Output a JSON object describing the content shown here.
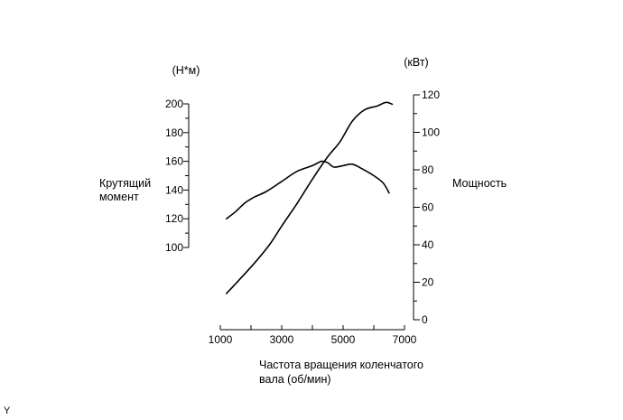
{
  "chart_data": {
    "type": "line",
    "xlabel": [
      "Частота вращения коленчатого",
      "вала (об/мин)"
    ],
    "xticks": [
      "1000",
      "3000",
      "5000",
      "7000"
    ],
    "xlim": [
      1000,
      7000
    ],
    "y_left": {
      "unit": "(Н*м)",
      "label": [
        "Крутящий",
        "момент"
      ],
      "ticks": [
        "100",
        "120",
        "140",
        "160",
        "180",
        "200"
      ],
      "ylim": [
        100,
        200
      ]
    },
    "y_right": {
      "unit": "(кВт)",
      "label": "Мощность",
      "ticks": [
        "0",
        "20",
        "40",
        "60",
        "80",
        "100",
        "120"
      ],
      "ylim": [
        0,
        120
      ]
    },
    "series": [
      {
        "axis": "left",
        "color": "#000000",
        "points": [
          [
            1200,
            120
          ],
          [
            1500,
            125
          ],
          [
            1800,
            131
          ],
          [
            2100,
            135
          ],
          [
            2500,
            139
          ],
          [
            3000,
            146
          ],
          [
            3500,
            153
          ],
          [
            4000,
            157
          ],
          [
            4300,
            160
          ],
          [
            4500,
            159
          ],
          [
            4700,
            156
          ],
          [
            5000,
            157
          ],
          [
            5300,
            158
          ],
          [
            5600,
            155
          ],
          [
            6000,
            150
          ],
          [
            6300,
            145
          ],
          [
            6500,
            138
          ]
        ]
      },
      {
        "axis": "right",
        "color": "#000000",
        "points": [
          [
            1200,
            14
          ],
          [
            1600,
            21
          ],
          [
            2100,
            30
          ],
          [
            2600,
            40
          ],
          [
            3000,
            50
          ],
          [
            3500,
            62
          ],
          [
            4000,
            75
          ],
          [
            4500,
            87
          ],
          [
            4900,
            95
          ],
          [
            5300,
            106
          ],
          [
            5700,
            112
          ],
          [
            6100,
            114
          ],
          [
            6400,
            116
          ],
          [
            6600,
            115
          ]
        ]
      }
    ],
    "grid": false,
    "legend": "none"
  },
  "footer": {
    "corner_mark": "Y"
  }
}
